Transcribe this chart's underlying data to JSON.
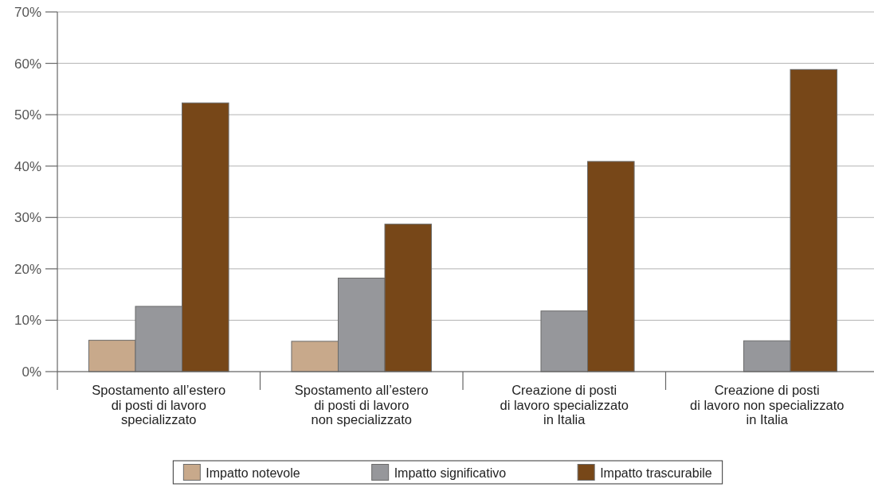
{
  "chart_data": {
    "type": "bar",
    "categories": [
      "Spostamento all’estero\ndi posti di lavoro\nspecializzato",
      "Spostamento all’estero\ndi posti di lavoro\nnon specializzato",
      "Creazione di posti\ndi lavoro specializzato\nin Italia",
      "Creazione di posti\ndi lavoro non specializzato\nin Italia"
    ],
    "series": [
      {
        "name": "Impatto notevole",
        "color": "#c8a98b",
        "values": [
          6.1,
          5.9,
          null,
          null
        ]
      },
      {
        "name": "Impatto significativo",
        "color": "#96979b",
        "values": [
          12.7,
          18.2,
          11.8,
          6.0
        ]
      },
      {
        "name": "Impatto trascurabile",
        "color": "#774718",
        "values": [
          52.3,
          28.7,
          40.9,
          58.8
        ]
      }
    ],
    "ylim": [
      0,
      70
    ],
    "yticks": [
      {
        "value": 0,
        "label": "0%"
      },
      {
        "value": 10,
        "label": "10%"
      },
      {
        "value": 20,
        "label": "20%"
      },
      {
        "value": 30,
        "label": "30%"
      },
      {
        "value": 40,
        "label": "40%"
      },
      {
        "value": 50,
        "label": "50%"
      },
      {
        "value": 60,
        "label": "60%"
      },
      {
        "value": 70,
        "label": "70%"
      }
    ],
    "grid": "y",
    "legend": "bottom"
  }
}
